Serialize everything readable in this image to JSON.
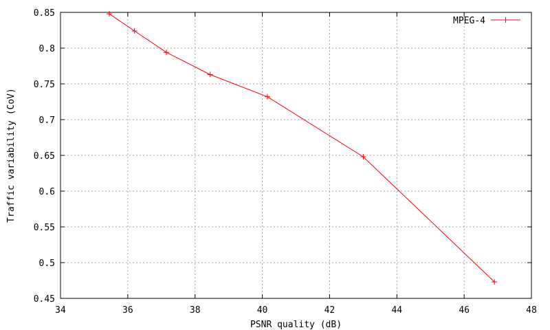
{
  "chart_data": {
    "type": "line",
    "xlabel": "PSNR quality (dB)",
    "ylabel": "Traffic variability (CoV)",
    "xlim": [
      34,
      48
    ],
    "ylim": [
      0.45,
      0.85
    ],
    "x_ticks": [
      "34",
      "36",
      "38",
      "40",
      "42",
      "44",
      "46",
      "48"
    ],
    "y_ticks": [
      "0.45",
      "0.5",
      "0.55",
      "0.6",
      "0.65",
      "0.7",
      "0.75",
      "0.8",
      "0.85"
    ],
    "grid": true,
    "legend_position": "top-right",
    "series": [
      {
        "name": "MPEG-4",
        "color": "#ff0000",
        "marker": "plus",
        "x": [
          35.45,
          36.2,
          37.15,
          38.45,
          40.15,
          43.0,
          46.9
        ],
        "y": [
          0.848,
          0.824,
          0.794,
          0.763,
          0.732,
          0.648,
          0.473
        ]
      }
    ]
  }
}
